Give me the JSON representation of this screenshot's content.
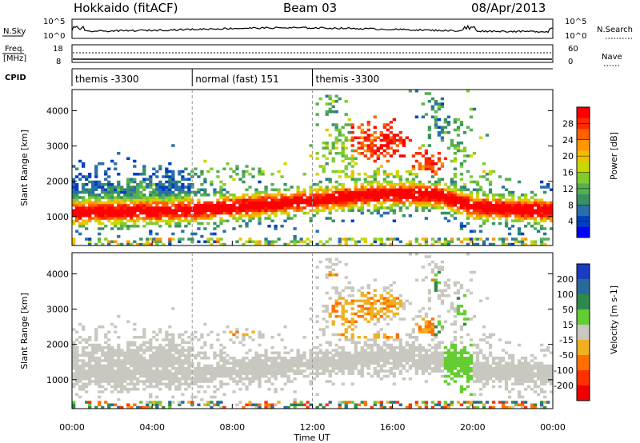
{
  "header": {
    "station": "Hokkaido (fitACF)",
    "beam": "Beam 03",
    "date": "08/Apr/2013"
  },
  "noise_panel": {
    "left_label": "N.Sky",
    "right_label": "N.Search",
    "left_ticks": [
      "10^5",
      "10^0"
    ],
    "right_ticks": [
      "10^5",
      "10^0"
    ]
  },
  "freq_panel": {
    "left_label_top": "Freq.",
    "left_label_unit": "[MHz]",
    "left_ticks": [
      "18",
      "8"
    ],
    "right_label": "Nave",
    "right_ticks": [
      "60",
      "0"
    ]
  },
  "cpid_panel": {
    "label": "CPID",
    "segments": [
      {
        "text": "themis -3300",
        "start_hour": 0
      },
      {
        "text": "normal (fast) 151",
        "start_hour": 6
      },
      {
        "text": "themis -3300",
        "start_hour": 12
      }
    ]
  },
  "chart_data": [
    {
      "type": "heatmap",
      "parameter": "power",
      "ylabel": "Slant Range [km]",
      "xlabel": "Time UT",
      "x_range_hours": [
        0,
        24
      ],
      "xticks": [
        "00:00",
        "04:00",
        "08:00",
        "12:00",
        "16:00",
        "20:00",
        "00:00"
      ],
      "ylim": [
        180,
        4600
      ],
      "yticks": [
        1000,
        2000,
        3000,
        4000
      ],
      "colorbar": {
        "label": "Power [dB]",
        "ticks": [
          4,
          8,
          12,
          16,
          20,
          24,
          28
        ],
        "range": [
          0,
          32
        ],
        "colors": [
          "#0000ff",
          "#0040c0",
          "#2a6fa8",
          "#3a9160",
          "#55b050",
          "#7fcc30",
          "#c8d800",
          "#f0c000",
          "#ff9800",
          "#ff6000",
          "#ff2a00",
          "#ff0000"
        ]
      }
    },
    {
      "type": "heatmap",
      "parameter": "velocity",
      "ylabel": "Slant Range [km]",
      "xlabel": "Time UT",
      "x_range_hours": [
        0,
        24
      ],
      "xticks": [
        "00:00",
        "04:00",
        "08:00",
        "12:00",
        "16:00",
        "20:00",
        "00:00"
      ],
      "ylim": [
        180,
        4600
      ],
      "yticks": [
        1000,
        2000,
        3000,
        4000
      ],
      "colorbar": {
        "label": "Velocity [m s-1]",
        "ticks": [
          200,
          100,
          50,
          15,
          -15,
          -50,
          -100,
          -200
        ],
        "segment_colors": [
          "#1a3cc0",
          "#2a6a9a",
          "#2e8a4a",
          "#66cc33",
          "#c8c8c0",
          "#f0b020",
          "#ff7000",
          "#ff3000",
          "#ee0000"
        ]
      }
    }
  ]
}
